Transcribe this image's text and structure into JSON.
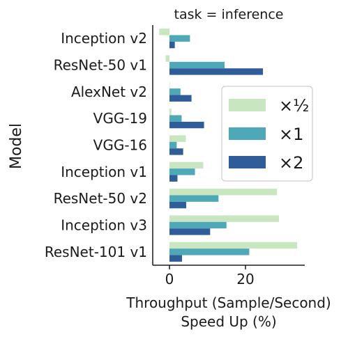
{
  "chart_data": {
    "type": "bar",
    "orientation": "horizontal",
    "title": "task = inference",
    "ylabel": "Model",
    "xlabel_lines": [
      "Throughput (Sample/Second)",
      "Speed Up (%)"
    ],
    "categories": [
      "Inception v2",
      "ResNet-50 v1",
      "AlexNet v2",
      "VGG-19",
      "VGG-16",
      "Inception v1",
      "ResNet-50 v2",
      "Inception v3",
      "ResNet-101 v1"
    ],
    "xlim": [
      -3,
      36
    ],
    "xticks": [
      0,
      20
    ],
    "xtick_labels": [
      "0",
      "20"
    ],
    "legend_position": "right-center",
    "series": [
      {
        "name": "×½",
        "color": "#c8e6c0",
        "values": [
          -2.7,
          -1.0,
          0.0,
          0.5,
          4.3,
          8.9,
          28.3,
          28.8,
          33.6
        ]
      },
      {
        "name": "×1",
        "color": "#4fa8b8",
        "values": [
          5.4,
          14.5,
          2.9,
          3.2,
          1.9,
          6.7,
          12.9,
          15.0,
          21.0
        ]
      },
      {
        "name": "×2",
        "color": "#2f5d9a",
        "values": [
          1.4,
          24.6,
          5.8,
          9.1,
          3.6,
          2.1,
          4.4,
          10.7,
          3.3
        ]
      }
    ]
  }
}
